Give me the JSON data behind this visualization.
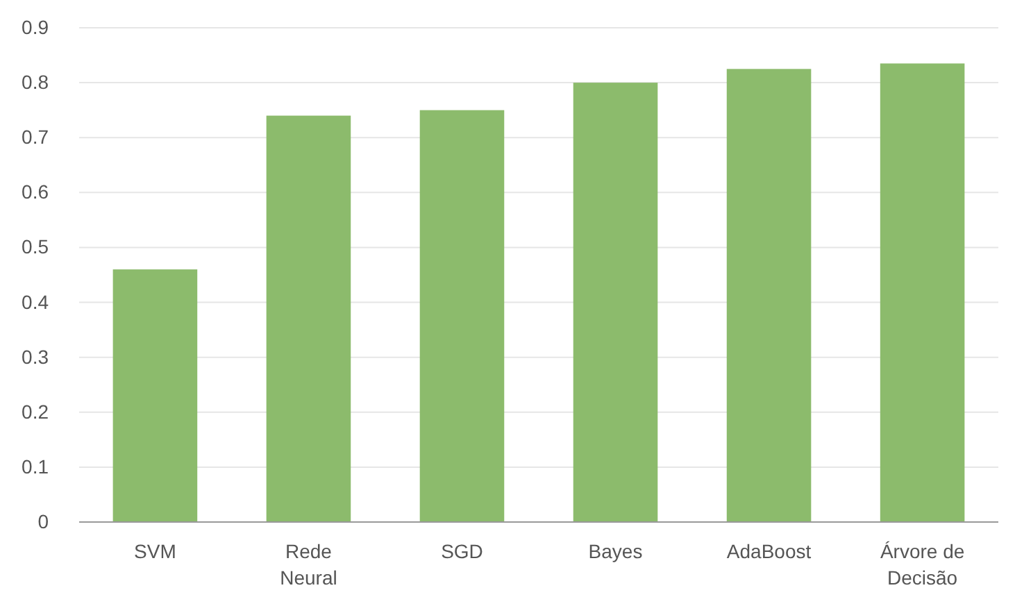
{
  "chart_data": {
    "type": "bar",
    "categories": [
      "SVM",
      "Rede Neural",
      "SGD",
      "Bayes",
      "AdaBoost",
      "Árvore de Decisão"
    ],
    "values": [
      0.46,
      0.74,
      0.75,
      0.8,
      0.825,
      0.835
    ],
    "color": "#8cbb6c",
    "ylim": [
      0,
      0.9
    ],
    "yticks": [
      0,
      0.1,
      0.2,
      0.3,
      0.4,
      0.5,
      0.6,
      0.7,
      0.8,
      0.9
    ],
    "grid": "y"
  }
}
